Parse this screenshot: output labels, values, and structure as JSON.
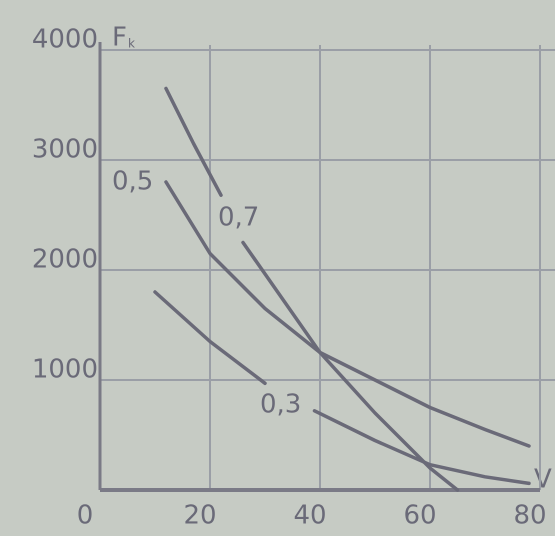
{
  "chart_data": {
    "type": "line",
    "x_label": "V",
    "y_label": "F",
    "y_label_subscript": "k",
    "xlim": [
      0,
      80
    ],
    "ylim": [
      0,
      4000
    ],
    "xticks": [
      0,
      20,
      40,
      60,
      80
    ],
    "yticks": [
      1000,
      2000,
      3000,
      4000
    ],
    "grid": true,
    "series": [
      {
        "name": "0,7",
        "color": "#6a6a78",
        "x": [
          12,
          17,
          22,
          null,
          26,
          33,
          40,
          50,
          60,
          65
        ],
        "values": [
          3650,
          3150,
          2680,
          null,
          2250,
          1750,
          1250,
          700,
          200,
          0
        ]
      },
      {
        "name": "0,5",
        "color": "#6a6a78",
        "x": [
          12,
          20,
          30,
          40,
          50,
          60,
          70,
          78
        ],
        "values": [
          2800,
          2150,
          1650,
          1250,
          1000,
          750,
          550,
          400
        ]
      },
      {
        "name": "0,3",
        "color": "#6a6a78",
        "x": [
          10,
          20,
          30,
          null,
          39,
          50,
          60,
          70,
          78
        ],
        "values": [
          1800,
          1350,
          970,
          null,
          720,
          450,
          230,
          120,
          60
        ]
      }
    ]
  }
}
